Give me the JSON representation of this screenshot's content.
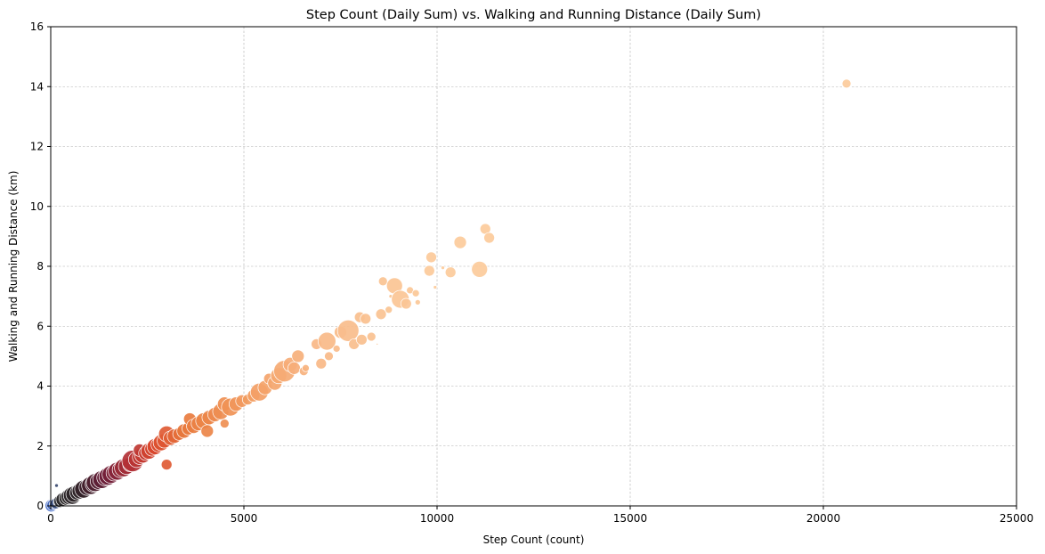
{
  "chart_data": {
    "type": "scatter",
    "title": "Step Count (Daily Sum) vs. Walking and Running Distance (Daily Sum)",
    "xlabel": "Step Count (count)",
    "ylabel": "Walking and Running Distance (km)",
    "xlim": [
      0,
      25000
    ],
    "ylim": [
      0,
      16
    ],
    "xticks": [
      "0",
      "5000",
      "10000",
      "15000",
      "20000",
      "25000"
    ],
    "yticks": [
      "0",
      "2",
      "4",
      "6",
      "8",
      "10",
      "12",
      "14",
      "16"
    ],
    "grid": true,
    "colormap": {
      "type": "continuous-by-x",
      "stops": [
        {
          "x": 0,
          "color": "#4a74d6"
        },
        {
          "x": 250,
          "color": "#2b2b2b"
        },
        {
          "x": 800,
          "color": "#2f2328"
        },
        {
          "x": 1500,
          "color": "#6e1f3a"
        },
        {
          "x": 2100,
          "color": "#b23036"
        },
        {
          "x": 2700,
          "color": "#d9482e"
        },
        {
          "x": 3500,
          "color": "#e87a3d"
        },
        {
          "x": 5000,
          "color": "#f29a5e"
        },
        {
          "x": 7000,
          "color": "#f8b987"
        },
        {
          "x": 10000,
          "color": "#fccb9b"
        }
      ]
    },
    "points": [
      {
        "x": 15,
        "y": 0.01,
        "size": 7
      },
      {
        "x": 40,
        "y": 0.03,
        "size": 6
      },
      {
        "x": 80,
        "y": 0.05,
        "size": 5
      },
      {
        "x": 130,
        "y": 0.08,
        "size": 6
      },
      {
        "x": 180,
        "y": 0.12,
        "size": 5
      },
      {
        "x": 150,
        "y": 0.68,
        "size": 2
      },
      {
        "x": 240,
        "y": 0.16,
        "size": 7
      },
      {
        "x": 320,
        "y": 0.21,
        "size": 8
      },
      {
        "x": 400,
        "y": 0.26,
        "size": 8
      },
      {
        "x": 480,
        "y": 0.31,
        "size": 9
      },
      {
        "x": 560,
        "y": 0.35,
        "size": 10
      },
      {
        "x": 600,
        "y": 0.39,
        "size": 9
      },
      {
        "x": 680,
        "y": 0.44,
        "size": 8
      },
      {
        "x": 760,
        "y": 0.5,
        "size": 9
      },
      {
        "x": 850,
        "y": 0.56,
        "size": 10
      },
      {
        "x": 940,
        "y": 0.62,
        "size": 9
      },
      {
        "x": 1030,
        "y": 0.68,
        "size": 10
      },
      {
        "x": 1100,
        "y": 0.73,
        "size": 9
      },
      {
        "x": 1150,
        "y": 0.78,
        "size": 10
      },
      {
        "x": 1230,
        "y": 0.82,
        "size": 9
      },
      {
        "x": 1320,
        "y": 0.88,
        "size": 10
      },
      {
        "x": 1400,
        "y": 0.94,
        "size": 9
      },
      {
        "x": 1480,
        "y": 0.99,
        "size": 10
      },
      {
        "x": 1560,
        "y": 1.05,
        "size": 10
      },
      {
        "x": 1640,
        "y": 1.1,
        "size": 9
      },
      {
        "x": 1720,
        "y": 1.16,
        "size": 10
      },
      {
        "x": 1800,
        "y": 1.21,
        "size": 9
      },
      {
        "x": 1880,
        "y": 1.27,
        "size": 10
      },
      {
        "x": 1960,
        "y": 1.32,
        "size": 9
      },
      {
        "x": 2050,
        "y": 1.38,
        "size": 8
      },
      {
        "x": 2120,
        "y": 1.5,
        "size": 12
      },
      {
        "x": 2220,
        "y": 1.55,
        "size": 9
      },
      {
        "x": 2300,
        "y": 1.62,
        "size": 8
      },
      {
        "x": 2380,
        "y": 1.7,
        "size": 9
      },
      {
        "x": 2300,
        "y": 1.86,
        "size": 7
      },
      {
        "x": 2460,
        "y": 1.76,
        "size": 8
      },
      {
        "x": 2540,
        "y": 1.83,
        "size": 9
      },
      {
        "x": 2620,
        "y": 1.9,
        "size": 8
      },
      {
        "x": 2700,
        "y": 1.98,
        "size": 9
      },
      {
        "x": 2780,
        "y": 2.04,
        "size": 8
      },
      {
        "x": 2860,
        "y": 2.11,
        "size": 9
      },
      {
        "x": 2940,
        "y": 2.17,
        "size": 8
      },
      {
        "x": 3000,
        "y": 1.38,
        "size": 6
      },
      {
        "x": 3000,
        "y": 2.4,
        "size": 9
      },
      {
        "x": 3100,
        "y": 2.26,
        "size": 8
      },
      {
        "x": 3200,
        "y": 2.33,
        "size": 8
      },
      {
        "x": 3320,
        "y": 2.4,
        "size": 7
      },
      {
        "x": 3450,
        "y": 2.5,
        "size": 8
      },
      {
        "x": 3560,
        "y": 2.58,
        "size": 7
      },
      {
        "x": 3600,
        "y": 2.9,
        "size": 7
      },
      {
        "x": 3700,
        "y": 2.66,
        "size": 8
      },
      {
        "x": 3820,
        "y": 2.75,
        "size": 8
      },
      {
        "x": 3960,
        "y": 2.84,
        "size": 9
      },
      {
        "x": 4050,
        "y": 2.5,
        "size": 7
      },
      {
        "x": 4100,
        "y": 2.95,
        "size": 8
      },
      {
        "x": 4250,
        "y": 3.05,
        "size": 8
      },
      {
        "x": 4400,
        "y": 3.15,
        "size": 9
      },
      {
        "x": 4500,
        "y": 2.75,
        "size": 5
      },
      {
        "x": 4500,
        "y": 3.4,
        "size": 8
      },
      {
        "x": 4650,
        "y": 3.3,
        "size": 10
      },
      {
        "x": 4800,
        "y": 3.4,
        "size": 8
      },
      {
        "x": 4950,
        "y": 3.5,
        "size": 7
      },
      {
        "x": 5100,
        "y": 3.55,
        "size": 6
      },
      {
        "x": 5250,
        "y": 3.68,
        "size": 7
      },
      {
        "x": 5400,
        "y": 3.8,
        "size": 10
      },
      {
        "x": 5550,
        "y": 3.95,
        "size": 8
      },
      {
        "x": 5650,
        "y": 4.25,
        "size": 6
      },
      {
        "x": 5800,
        "y": 4.1,
        "size": 8
      },
      {
        "x": 5900,
        "y": 4.35,
        "size": 9
      },
      {
        "x": 6050,
        "y": 4.5,
        "size": 12
      },
      {
        "x": 6200,
        "y": 4.72,
        "size": 8
      },
      {
        "x": 6300,
        "y": 4.6,
        "size": 7
      },
      {
        "x": 6400,
        "y": 5.0,
        "size": 7
      },
      {
        "x": 6550,
        "y": 4.5,
        "size": 5
      },
      {
        "x": 6600,
        "y": 4.6,
        "size": 4
      },
      {
        "x": 6880,
        "y": 5.4,
        "size": 6
      },
      {
        "x": 7000,
        "y": 4.75,
        "size": 6
      },
      {
        "x": 7150,
        "y": 5.5,
        "size": 10
      },
      {
        "x": 7200,
        "y": 5.0,
        "size": 5
      },
      {
        "x": 7400,
        "y": 5.25,
        "size": 4
      },
      {
        "x": 7500,
        "y": 5.8,
        "size": 7
      },
      {
        "x": 7700,
        "y": 5.85,
        "size": 12
      },
      {
        "x": 7850,
        "y": 5.4,
        "size": 6
      },
      {
        "x": 8000,
        "y": 6.3,
        "size": 6
      },
      {
        "x": 8050,
        "y": 5.55,
        "size": 6
      },
      {
        "x": 8150,
        "y": 6.25,
        "size": 6
      },
      {
        "x": 8300,
        "y": 5.65,
        "size": 5
      },
      {
        "x": 8450,
        "y": 5.4,
        "size": 1
      },
      {
        "x": 8550,
        "y": 6.4,
        "size": 6
      },
      {
        "x": 8600,
        "y": 7.5,
        "size": 5
      },
      {
        "x": 8750,
        "y": 6.55,
        "size": 4
      },
      {
        "x": 8800,
        "y": 7.0,
        "size": 2
      },
      {
        "x": 8900,
        "y": 7.35,
        "size": 9
      },
      {
        "x": 9050,
        "y": 6.9,
        "size": 10
      },
      {
        "x": 9200,
        "y": 6.75,
        "size": 6
      },
      {
        "x": 9300,
        "y": 7.2,
        "size": 4
      },
      {
        "x": 9450,
        "y": 7.1,
        "size": 4
      },
      {
        "x": 9500,
        "y": 6.8,
        "size": 3
      },
      {
        "x": 9800,
        "y": 7.85,
        "size": 6
      },
      {
        "x": 9850,
        "y": 8.3,
        "size": 6
      },
      {
        "x": 9950,
        "y": 7.3,
        "size": 2
      },
      {
        "x": 10150,
        "y": 7.95,
        "size": 2
      },
      {
        "x": 10350,
        "y": 7.8,
        "size": 6
      },
      {
        "x": 10600,
        "y": 8.8,
        "size": 7
      },
      {
        "x": 11100,
        "y": 7.9,
        "size": 9
      },
      {
        "x": 11250,
        "y": 9.25,
        "size": 6
      },
      {
        "x": 11350,
        "y": 8.95,
        "size": 6
      },
      {
        "x": 20600,
        "y": 14.1,
        "size": 5
      }
    ]
  }
}
